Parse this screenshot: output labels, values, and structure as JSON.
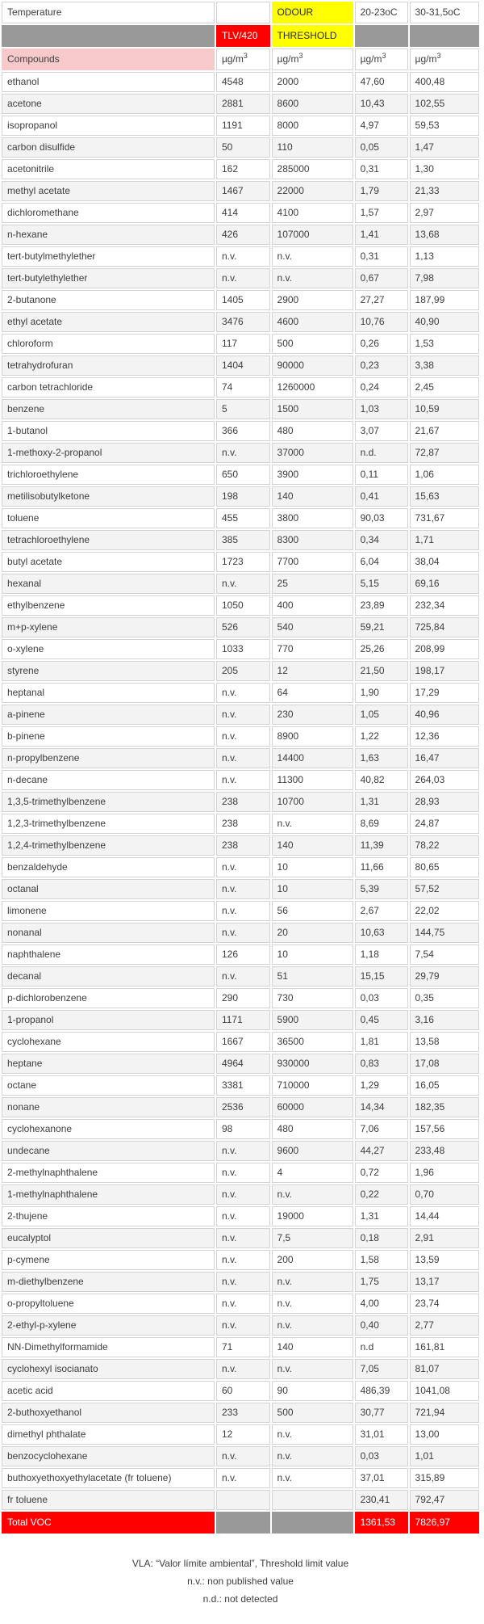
{
  "header": {
    "temperature_label": "Temperature",
    "odour_label": "ODOUR",
    "temp_col1_label": "20-23oC",
    "temp_col2_label": "30-31,5oC",
    "tlv_label": "TLV/420",
    "threshold_label": "THRESHOLD",
    "compounds_label": "Compounds",
    "unit_prefix": "µg/m",
    "unit_sup": "3"
  },
  "table": {
    "rows": [
      {
        "name": "ethanol",
        "tlv": "4548",
        "odour": "2000",
        "t20": "47,60",
        "t30": "400,48"
      },
      {
        "name": "acetone",
        "tlv": "2881",
        "odour": "8600",
        "t20": "10,43",
        "t30": "102,55"
      },
      {
        "name": "isopropanol",
        "tlv": "1191",
        "odour": "8000",
        "t20": "4,97",
        "t30": "59,53"
      },
      {
        "name": "carbon disulfide",
        "tlv": "50",
        "odour": "110",
        "t20": "0,05",
        "t30": "1,47"
      },
      {
        "name": "acetonitrile",
        "tlv": "162",
        "odour": "285000",
        "t20": "0,31",
        "t30": "1,30"
      },
      {
        "name": "methyl acetate",
        "tlv": "1467",
        "odour": "22000",
        "t20": "1,79",
        "t30": "21,33"
      },
      {
        "name": "dichloromethane",
        "tlv": "414",
        "odour": "4100",
        "t20": "1,57",
        "t30": "2,97"
      },
      {
        "name": "n-hexane",
        "tlv": "426",
        "odour": "107000",
        "t20": "1,41",
        "t30": "13,68"
      },
      {
        "name": "tert-butylmethylether",
        "tlv": "n.v.",
        "odour": "n.v.",
        "t20": "0,31",
        "t30": "1,13"
      },
      {
        "name": "tert-butylethylether",
        "tlv": "n.v.",
        "odour": "n.v.",
        "t20": "0,67",
        "t30": "7,98"
      },
      {
        "name": "2-butanone",
        "tlv": "1405",
        "odour": "2900",
        "t20": "27,27",
        "t30": "187,99"
      },
      {
        "name": "ethyl acetate",
        "tlv": "3476",
        "odour": "4600",
        "t20": "10,76",
        "t30": "40,90"
      },
      {
        "name": "chloroform",
        "tlv": "117",
        "odour": "500",
        "t20": "0,26",
        "t30": "1,53"
      },
      {
        "name": "tetrahydrofuran",
        "tlv": "1404",
        "odour": "90000",
        "t20": "0,23",
        "t30": "3,38"
      },
      {
        "name": "carbon tetrachloride",
        "tlv": "74",
        "odour": "1260000",
        "t20": "0,24",
        "t30": "2,45"
      },
      {
        "name": "benzene",
        "tlv": "5",
        "odour": "1500",
        "t20": "1,03",
        "t30": "10,59"
      },
      {
        "name": "1-butanol",
        "tlv": "366",
        "odour": "480",
        "t20": "3,07",
        "t30": "21,67"
      },
      {
        "name": "1-methoxy-2-propanol",
        "tlv": "n.v.",
        "odour": "37000",
        "t20": "n.d.",
        "t30": "72,87"
      },
      {
        "name": "trichloroethylene",
        "tlv": "650",
        "odour": "3900",
        "t20": "0,11",
        "t30": "1,06"
      },
      {
        "name": "metilisobutylketone",
        "tlv": "198",
        "odour": "140",
        "t20": "0,41",
        "t30": "15,63"
      },
      {
        "name": "toluene",
        "tlv": "455",
        "odour": "3800",
        "t20": "90,03",
        "t30": "731,67"
      },
      {
        "name": "tetrachloroethylene",
        "tlv": "385",
        "odour": "8300",
        "t20": "0,34",
        "t30": "1,71"
      },
      {
        "name": "butyl acetate",
        "tlv": "1723",
        "odour": "7700",
        "t20": "6,04",
        "t30": "38,04"
      },
      {
        "name": "hexanal",
        "tlv": "n.v.",
        "odour": "25",
        "t20": "5,15",
        "t30": "69,16"
      },
      {
        "name": "ethylbenzene",
        "tlv": "1050",
        "odour": "400",
        "t20": "23,89",
        "t30": "232,34"
      },
      {
        "name": "m+p-xylene",
        "tlv": "526",
        "odour": "540",
        "t20": "59,21",
        "t30": "725,84"
      },
      {
        "name": "o-xylene",
        "tlv": "1033",
        "odour": "770",
        "t20": "25,26",
        "t30": "208,99"
      },
      {
        "name": "styrene",
        "tlv": "205",
        "odour": "12",
        "t20": "21,50",
        "t30": "198,17"
      },
      {
        "name": "heptanal",
        "tlv": "n.v.",
        "odour": "64",
        "t20": "1,90",
        "t30": "17,29"
      },
      {
        "name": "a-pinene",
        "tlv": "n.v.",
        "odour": "230",
        "t20": "1,05",
        "t30": "40,96"
      },
      {
        "name": "b-pinene",
        "tlv": "n.v.",
        "odour": "8900",
        "t20": "1,22",
        "t30": "12,36"
      },
      {
        "name": "n-propylbenzene",
        "tlv": "n.v.",
        "odour": "14400",
        "t20": "1,63",
        "t30": "16,47"
      },
      {
        "name": "n-decane",
        "tlv": "n.v.",
        "odour": "11300",
        "t20": "40,82",
        "t30": "264,03"
      },
      {
        "name": "1,3,5-trimethylbenzene",
        "tlv": "238",
        "odour": "10700",
        "t20": "1,31",
        "t30": "28,93"
      },
      {
        "name": "1,2,3-trimethylbenzene",
        "tlv": "238",
        "odour": "n.v.",
        "t20": "8,69",
        "t30": "24,87"
      },
      {
        "name": "1,2,4-trimethylbenzene",
        "tlv": "238",
        "odour": "140",
        "t20": "11,39",
        "t30": "78,22"
      },
      {
        "name": "benzaldehyde",
        "tlv": "n.v.",
        "odour": "10",
        "t20": "11,66",
        "t30": "80,65"
      },
      {
        "name": "octanal",
        "tlv": "n.v.",
        "odour": "10",
        "t20": "5,39",
        "t30": "57,52"
      },
      {
        "name": "limonene",
        "tlv": "n.v.",
        "odour": "56",
        "t20": "2,67",
        "t30": "22,02"
      },
      {
        "name": "nonanal",
        "tlv": "n.v.",
        "odour": "20",
        "t20": "10,63",
        "t30": "144,75"
      },
      {
        "name": "naphthalene",
        "tlv": "126",
        "odour": "10",
        "t20": "1,18",
        "t30": "7,54"
      },
      {
        "name": "decanal",
        "tlv": "n.v.",
        "odour": "51",
        "t20": "15,15",
        "t30": "29,79"
      },
      {
        "name": "p-dichlorobenzene",
        "tlv": "290",
        "odour": "730",
        "t20": "0,03",
        "t30": "0,35"
      },
      {
        "name": "1-propanol",
        "tlv": "1171",
        "odour": "5900",
        "t20": "0,45",
        "t30": "3,16"
      },
      {
        "name": "cyclohexane",
        "tlv": "1667",
        "odour": "36500",
        "t20": "1,81",
        "t30": "13,58"
      },
      {
        "name": "heptane",
        "tlv": "4964",
        "odour": "930000",
        "t20": "0,83",
        "t30": "17,08"
      },
      {
        "name": "octane",
        "tlv": "3381",
        "odour": "710000",
        "t20": "1,29",
        "t30": "16,05"
      },
      {
        "name": "nonane",
        "tlv": "2536",
        "odour": "60000",
        "t20": "14,34",
        "t30": "182,35"
      },
      {
        "name": "cyclohexanone",
        "tlv": "98",
        "odour": "480",
        "t20": "7,06",
        "t30": "157,56"
      },
      {
        "name": "undecane",
        "tlv": "n.v.",
        "odour": "9600",
        "t20": "44,27",
        "t30": "233,48"
      },
      {
        "name": "2-methylnaphthalene",
        "tlv": "n.v.",
        "odour": "4",
        "t20": "0,72",
        "t30": "1,96"
      },
      {
        "name": "1-methylnaphthalene",
        "tlv": "n.v.",
        "odour": "n.v.",
        "t20": "0,22",
        "t30": "0,70"
      },
      {
        "name": "2-thujene",
        "tlv": "n.v.",
        "odour": "19000",
        "t20": "1,31",
        "t30": "14,44"
      },
      {
        "name": "eucalyptol",
        "tlv": "n.v.",
        "odour": "7,5",
        "t20": "0,18",
        "t30": "2,91"
      },
      {
        "name": "p-cymene",
        "tlv": "n.v.",
        "odour": "200",
        "t20": "1,58",
        "t30": "13,59"
      },
      {
        "name": "m-diethylbenzene",
        "tlv": "n.v.",
        "odour": "n.v.",
        "t20": "1,75",
        "t30": "13,17"
      },
      {
        "name": "o-propyltoluene",
        "tlv": "n.v.",
        "odour": "n.v.",
        "t20": "4,00",
        "t30": "23,74"
      },
      {
        "name": "2-ethyl-p-xylene",
        "tlv": "n.v.",
        "odour": "n.v.",
        "t20": "0,40",
        "t30": "2,77"
      },
      {
        "name": "NN-Dimethylformamide",
        "tlv": "71",
        "odour": "140",
        "t20": "n.d",
        "t30": "161,81"
      },
      {
        "name": "cyclohexyl isocianato",
        "tlv": "n.v.",
        "odour": "n.v.",
        "t20": "7,05",
        "t30": "81,07"
      },
      {
        "name": "acetic acid",
        "tlv": "60",
        "odour": "90",
        "t20": "486,39",
        "t30": "1041,08"
      },
      {
        "name": "2-buthoxyethanol",
        "tlv": "233",
        "odour": "500",
        "t20": "30,77",
        "t30": "721,94"
      },
      {
        "name": "dimethyl phthalate",
        "tlv": "12",
        "odour": "n.v.",
        "t20": "31,01",
        "t30": "13,00"
      },
      {
        "name": "benzocyclohexane",
        "tlv": "n.v.",
        "odour": "n.v.",
        "t20": "0,03",
        "t30": "1,01"
      },
      {
        "name": "buthoxyethoxyethylacetate (fr toluene)",
        "tlv": "n.v.",
        "odour": "n.v.",
        "t20": "37,01",
        "t30": "315,89"
      },
      {
        "name": "fr toluene",
        "tlv": "",
        "odour": "",
        "t20": "230,41",
        "t30": "792,47"
      }
    ]
  },
  "total_row": {
    "label": "Total VOC",
    "t20": "1361,53",
    "t30": "7826,97"
  },
  "footnotes": {
    "vla": "VLA: “Valor límite ambiental”, Threshold limit value",
    "nv": "n.v.: non published value",
    "nd": "n.d.: not detected"
  },
  "colors": {
    "accent_red": "#fe0000",
    "accent_yellow": "#ffff00",
    "header_gray": "#999999",
    "compounds_pink": "#f8c9cb",
    "row_stripe": "#f3f3f3"
  }
}
